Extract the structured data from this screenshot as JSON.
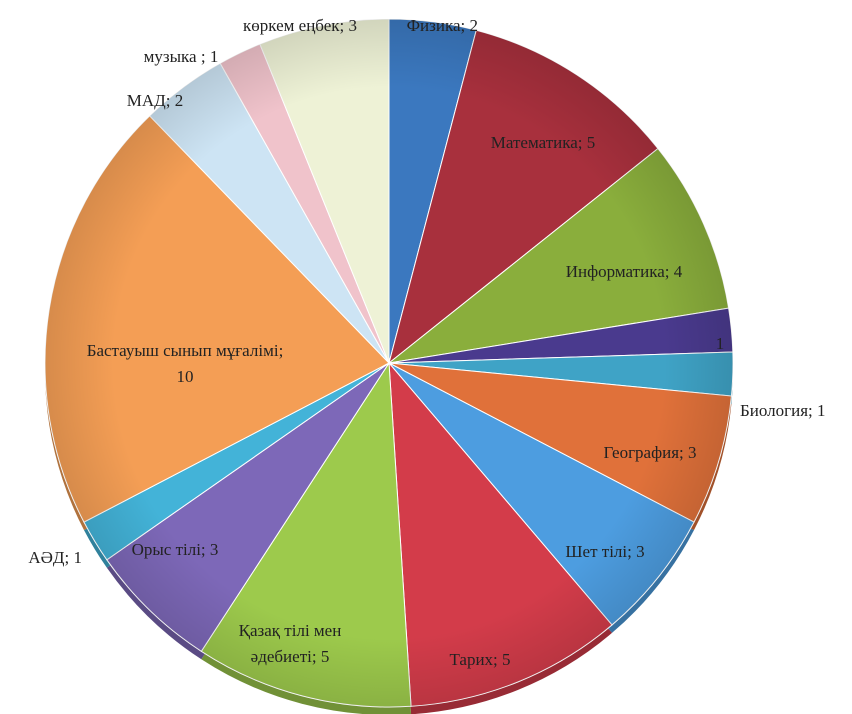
{
  "chart_data": {
    "type": "pie",
    "title": "",
    "start_angle_deg": 0,
    "direction": "clockwise",
    "slices": [
      {
        "label": "Физика; 2",
        "value": 2,
        "color": "#3b78bf"
      },
      {
        "label": "Математика; 5",
        "value": 5,
        "color": "#a8303d"
      },
      {
        "label": "Информатика; 4",
        "value": 4,
        "color": "#8aae3c"
      },
      {
        "label": "1",
        "value": 1,
        "color": "#4a3a8e"
      },
      {
        "label": "Биология; 1",
        "value": 1,
        "color": "#3fa3c6"
      },
      {
        "label": "География; 3",
        "value": 3,
        "color": "#e0713a"
      },
      {
        "label": "Шет тілі; 3",
        "value": 3,
        "color": "#4d9de0"
      },
      {
        "label": "Тарих; 5",
        "value": 5,
        "color": "#d33c4a"
      },
      {
        "label": "Қазақ тілі мен әдебиеті; 5",
        "value": 5,
        "color": "#9dca4c"
      },
      {
        "label": "Орыс тілі; 3",
        "value": 3,
        "color": "#7d68b8"
      },
      {
        "label": "АӘД; 1",
        "value": 1,
        "color": "#43b3d8"
      },
      {
        "label": "Бастауыш сынып мұғалімі; 10",
        "value": 10,
        "color": "#f49e55"
      },
      {
        "label": "МАД; 2",
        "value": 2,
        "color": "#cde4f4"
      },
      {
        "label": "музыка ; 1",
        "value": 1,
        "color": "#f0c3cb"
      },
      {
        "label": "көркем еңбек; 3",
        "value": 3,
        "color": "#eef2d6"
      }
    ]
  }
}
